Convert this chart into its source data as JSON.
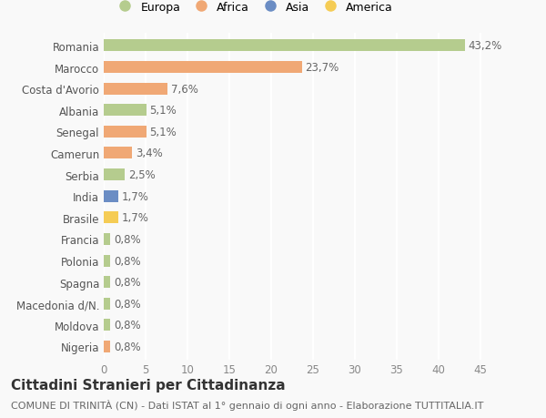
{
  "categories": [
    "Romania",
    "Marocco",
    "Costa d'Avorio",
    "Albania",
    "Senegal",
    "Camerun",
    "Serbia",
    "India",
    "Brasile",
    "Francia",
    "Polonia",
    "Spagna",
    "Macedonia d/N.",
    "Moldova",
    "Nigeria"
  ],
  "values": [
    43.2,
    23.7,
    7.6,
    5.1,
    5.1,
    3.4,
    2.5,
    1.7,
    1.7,
    0.8,
    0.8,
    0.8,
    0.8,
    0.8,
    0.8
  ],
  "labels": [
    "43,2%",
    "23,7%",
    "7,6%",
    "5,1%",
    "5,1%",
    "3,4%",
    "2,5%",
    "1,7%",
    "1,7%",
    "0,8%",
    "0,8%",
    "0,8%",
    "0,8%",
    "0,8%",
    "0,8%"
  ],
  "continents": [
    "Europa",
    "Africa",
    "Africa",
    "Europa",
    "Africa",
    "Africa",
    "Europa",
    "Asia",
    "America",
    "Europa",
    "Europa",
    "Europa",
    "Europa",
    "Europa",
    "Africa"
  ],
  "continent_colors": {
    "Europa": "#b5cc8e",
    "Africa": "#f0a875",
    "Asia": "#6b8dc4",
    "America": "#f5cc55"
  },
  "legend_order": [
    "Europa",
    "Africa",
    "Asia",
    "America"
  ],
  "xlim": [
    0,
    47
  ],
  "xticks": [
    0,
    5,
    10,
    15,
    20,
    25,
    30,
    35,
    40,
    45
  ],
  "title": "Cittadini Stranieri per Cittadinanza",
  "subtitle": "COMUNE DI TRINITÀ (CN) - Dati ISTAT al 1° gennaio di ogni anno - Elaborazione TUTTITALIA.IT",
  "bg_color": "#f9f9f9",
  "grid_color": "#ffffff",
  "bar_height": 0.55,
  "label_fontsize": 8.5,
  "ytick_fontsize": 8.5,
  "xtick_fontsize": 8.5,
  "title_fontsize": 11,
  "subtitle_fontsize": 8,
  "legend_fontsize": 9
}
